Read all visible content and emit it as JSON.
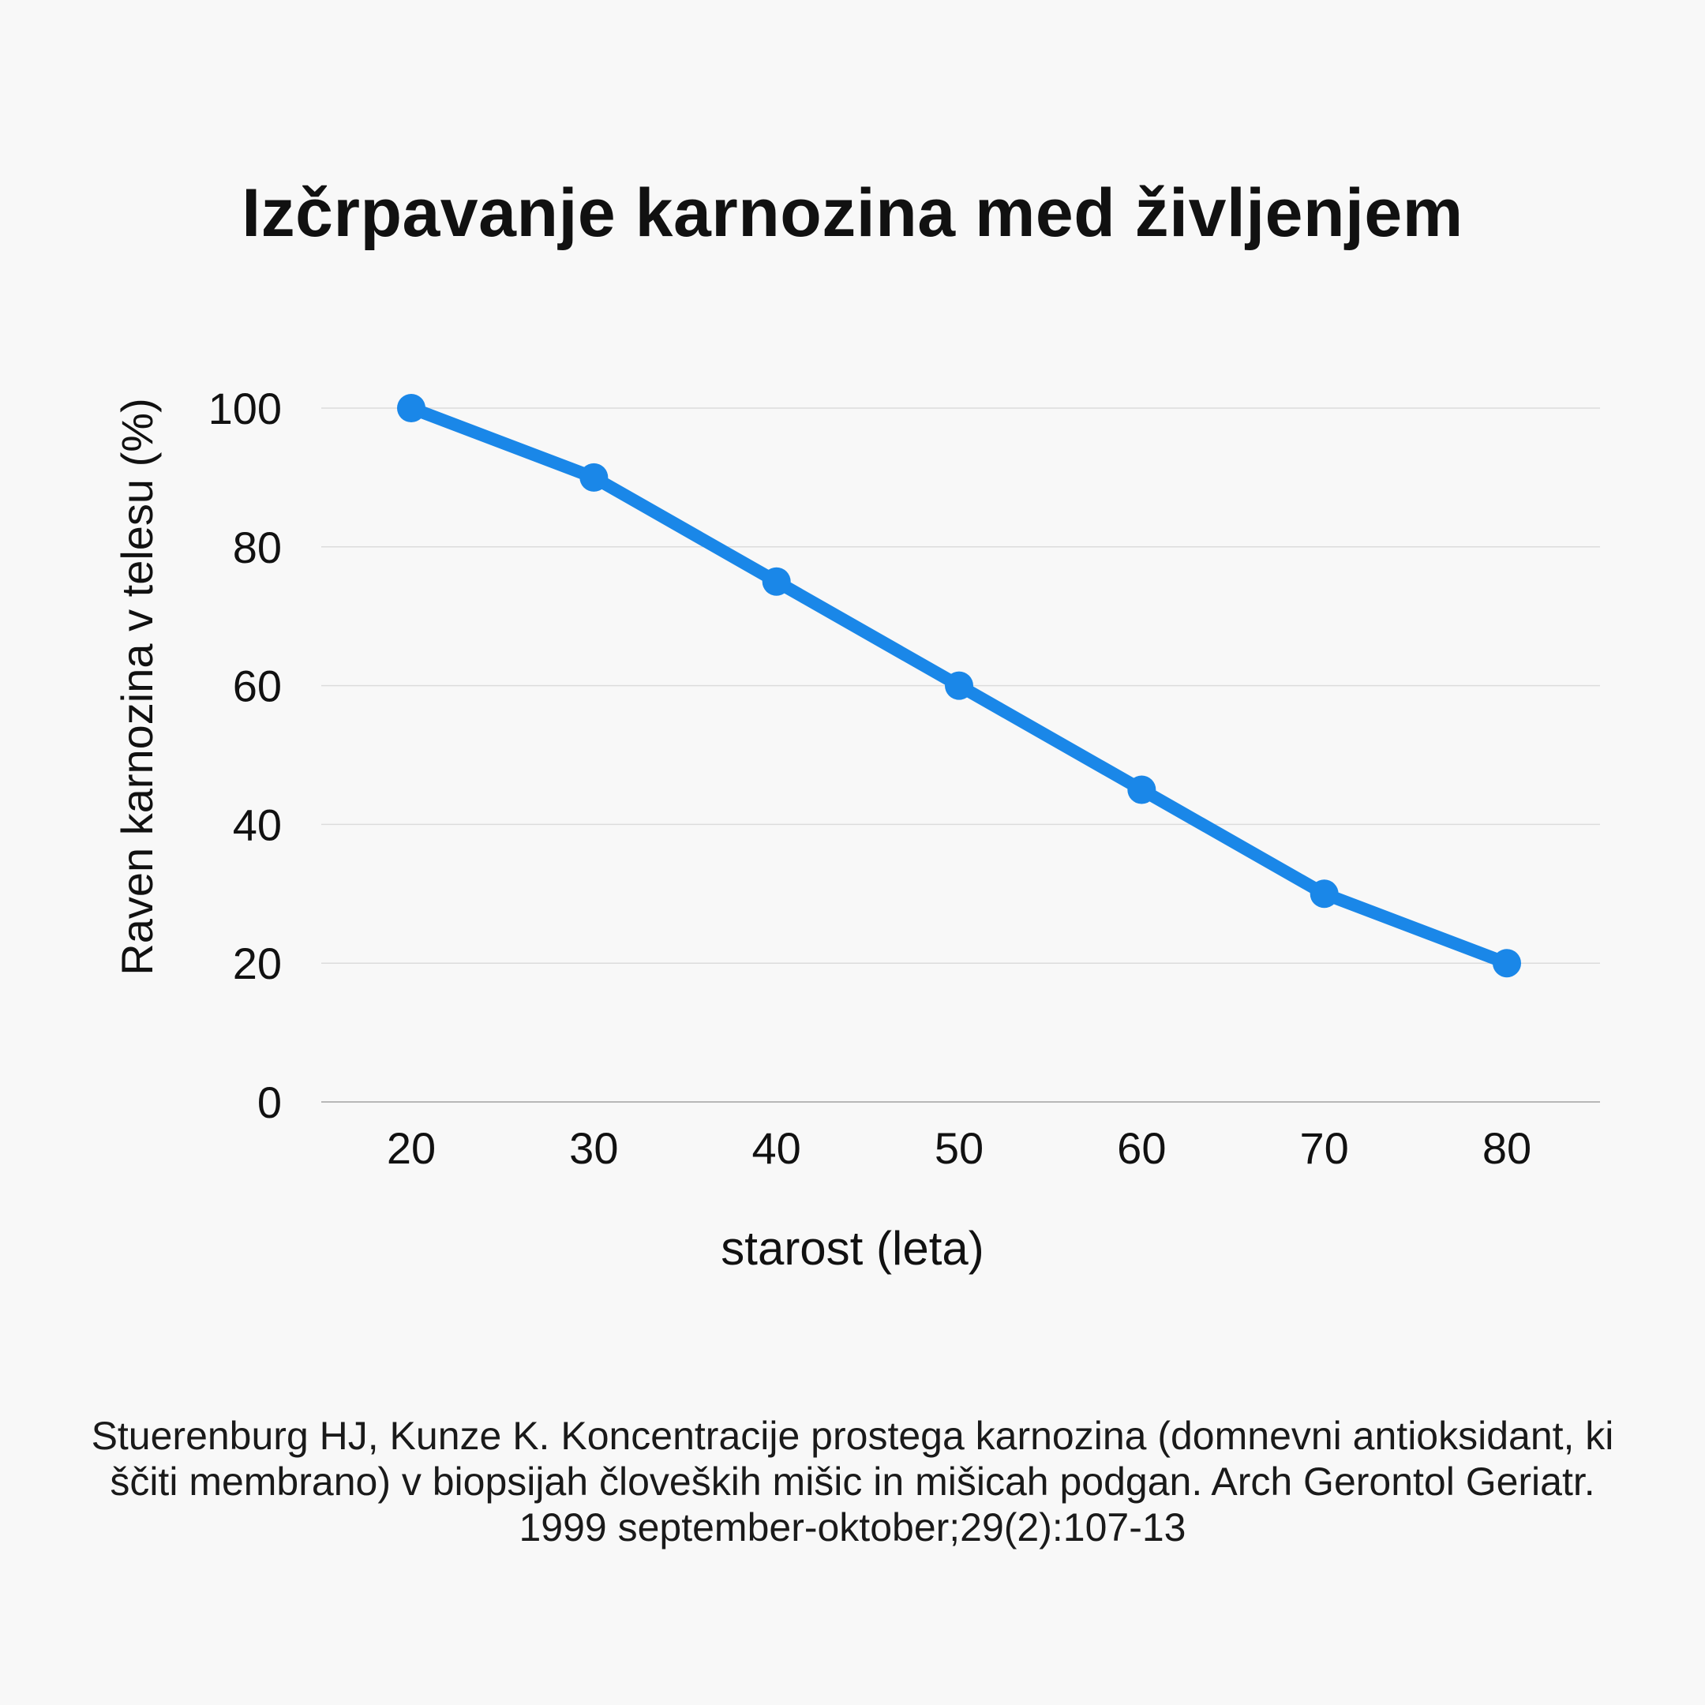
{
  "page": {
    "background": "#f8f8f8"
  },
  "chart_data": {
    "type": "line",
    "title": "Izčrpavanje karnozina med življenjem",
    "xlabel": "starost (leta)",
    "ylabel": "Raven karnozina v telesu (%)",
    "categories": [
      "20",
      "30",
      "40",
      "50",
      "60",
      "70",
      "80"
    ],
    "series": [
      {
        "values": [
          100,
          90,
          75,
          60,
          45,
          30,
          20
        ],
        "color": "#1a87e8"
      }
    ],
    "ylim": [
      0,
      100
    ],
    "yticks": [
      "0",
      "20",
      "40",
      "60",
      "80",
      "100"
    ],
    "grid": true,
    "legend": "none"
  },
  "caption": "Stuerenburg HJ, Kunze K. Koncentracije prostega karnozina (domnevni antioksidant, ki ščiti membrano) v biopsijah človeških mišic in mišicah podgan. Arch Gerontol Geriatr. 1999 september-oktober;29(2):107-13"
}
